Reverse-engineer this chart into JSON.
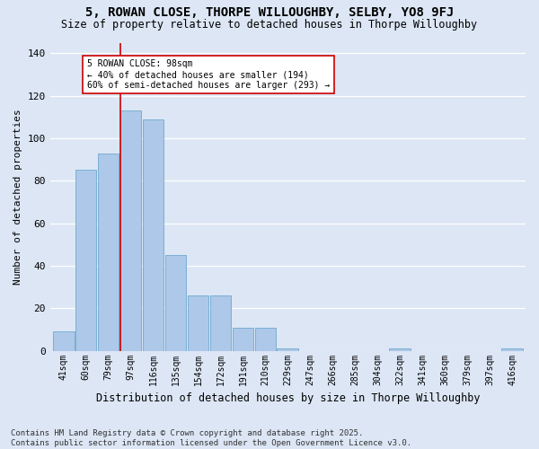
{
  "title": "5, ROWAN CLOSE, THORPE WILLOUGHBY, SELBY, YO8 9FJ",
  "subtitle": "Size of property relative to detached houses in Thorpe Willoughby",
  "xlabel": "Distribution of detached houses by size in Thorpe Willoughby",
  "ylabel": "Number of detached properties",
  "categories": [
    "41sqm",
    "60sqm",
    "79sqm",
    "97sqm",
    "116sqm",
    "135sqm",
    "154sqm",
    "172sqm",
    "191sqm",
    "210sqm",
    "229sqm",
    "247sqm",
    "266sqm",
    "285sqm",
    "304sqm",
    "322sqm",
    "341sqm",
    "360sqm",
    "379sqm",
    "397sqm",
    "416sqm"
  ],
  "values": [
    9,
    85,
    93,
    113,
    109,
    45,
    26,
    26,
    11,
    11,
    1,
    0,
    0,
    0,
    0,
    1,
    0,
    0,
    0,
    0,
    1
  ],
  "bar_color": "#adc8e8",
  "bar_edge_color": "#7aafd4",
  "background_color": "#dce6f5",
  "grid_color": "#ffffff",
  "vline_color": "#cc0000",
  "vline_x_index": 3,
  "annotation_text": "5 ROWAN CLOSE: 98sqm\n← 40% of detached houses are smaller (194)\n60% of semi-detached houses are larger (293) →",
  "annotation_box_facecolor": "#ffffff",
  "annotation_box_edgecolor": "#cc0000",
  "ylim": [
    0,
    145
  ],
  "yticks": [
    0,
    20,
    40,
    60,
    80,
    100,
    120,
    140
  ],
  "footer": "Contains HM Land Registry data © Crown copyright and database right 2025.\nContains public sector information licensed under the Open Government Licence v3.0."
}
